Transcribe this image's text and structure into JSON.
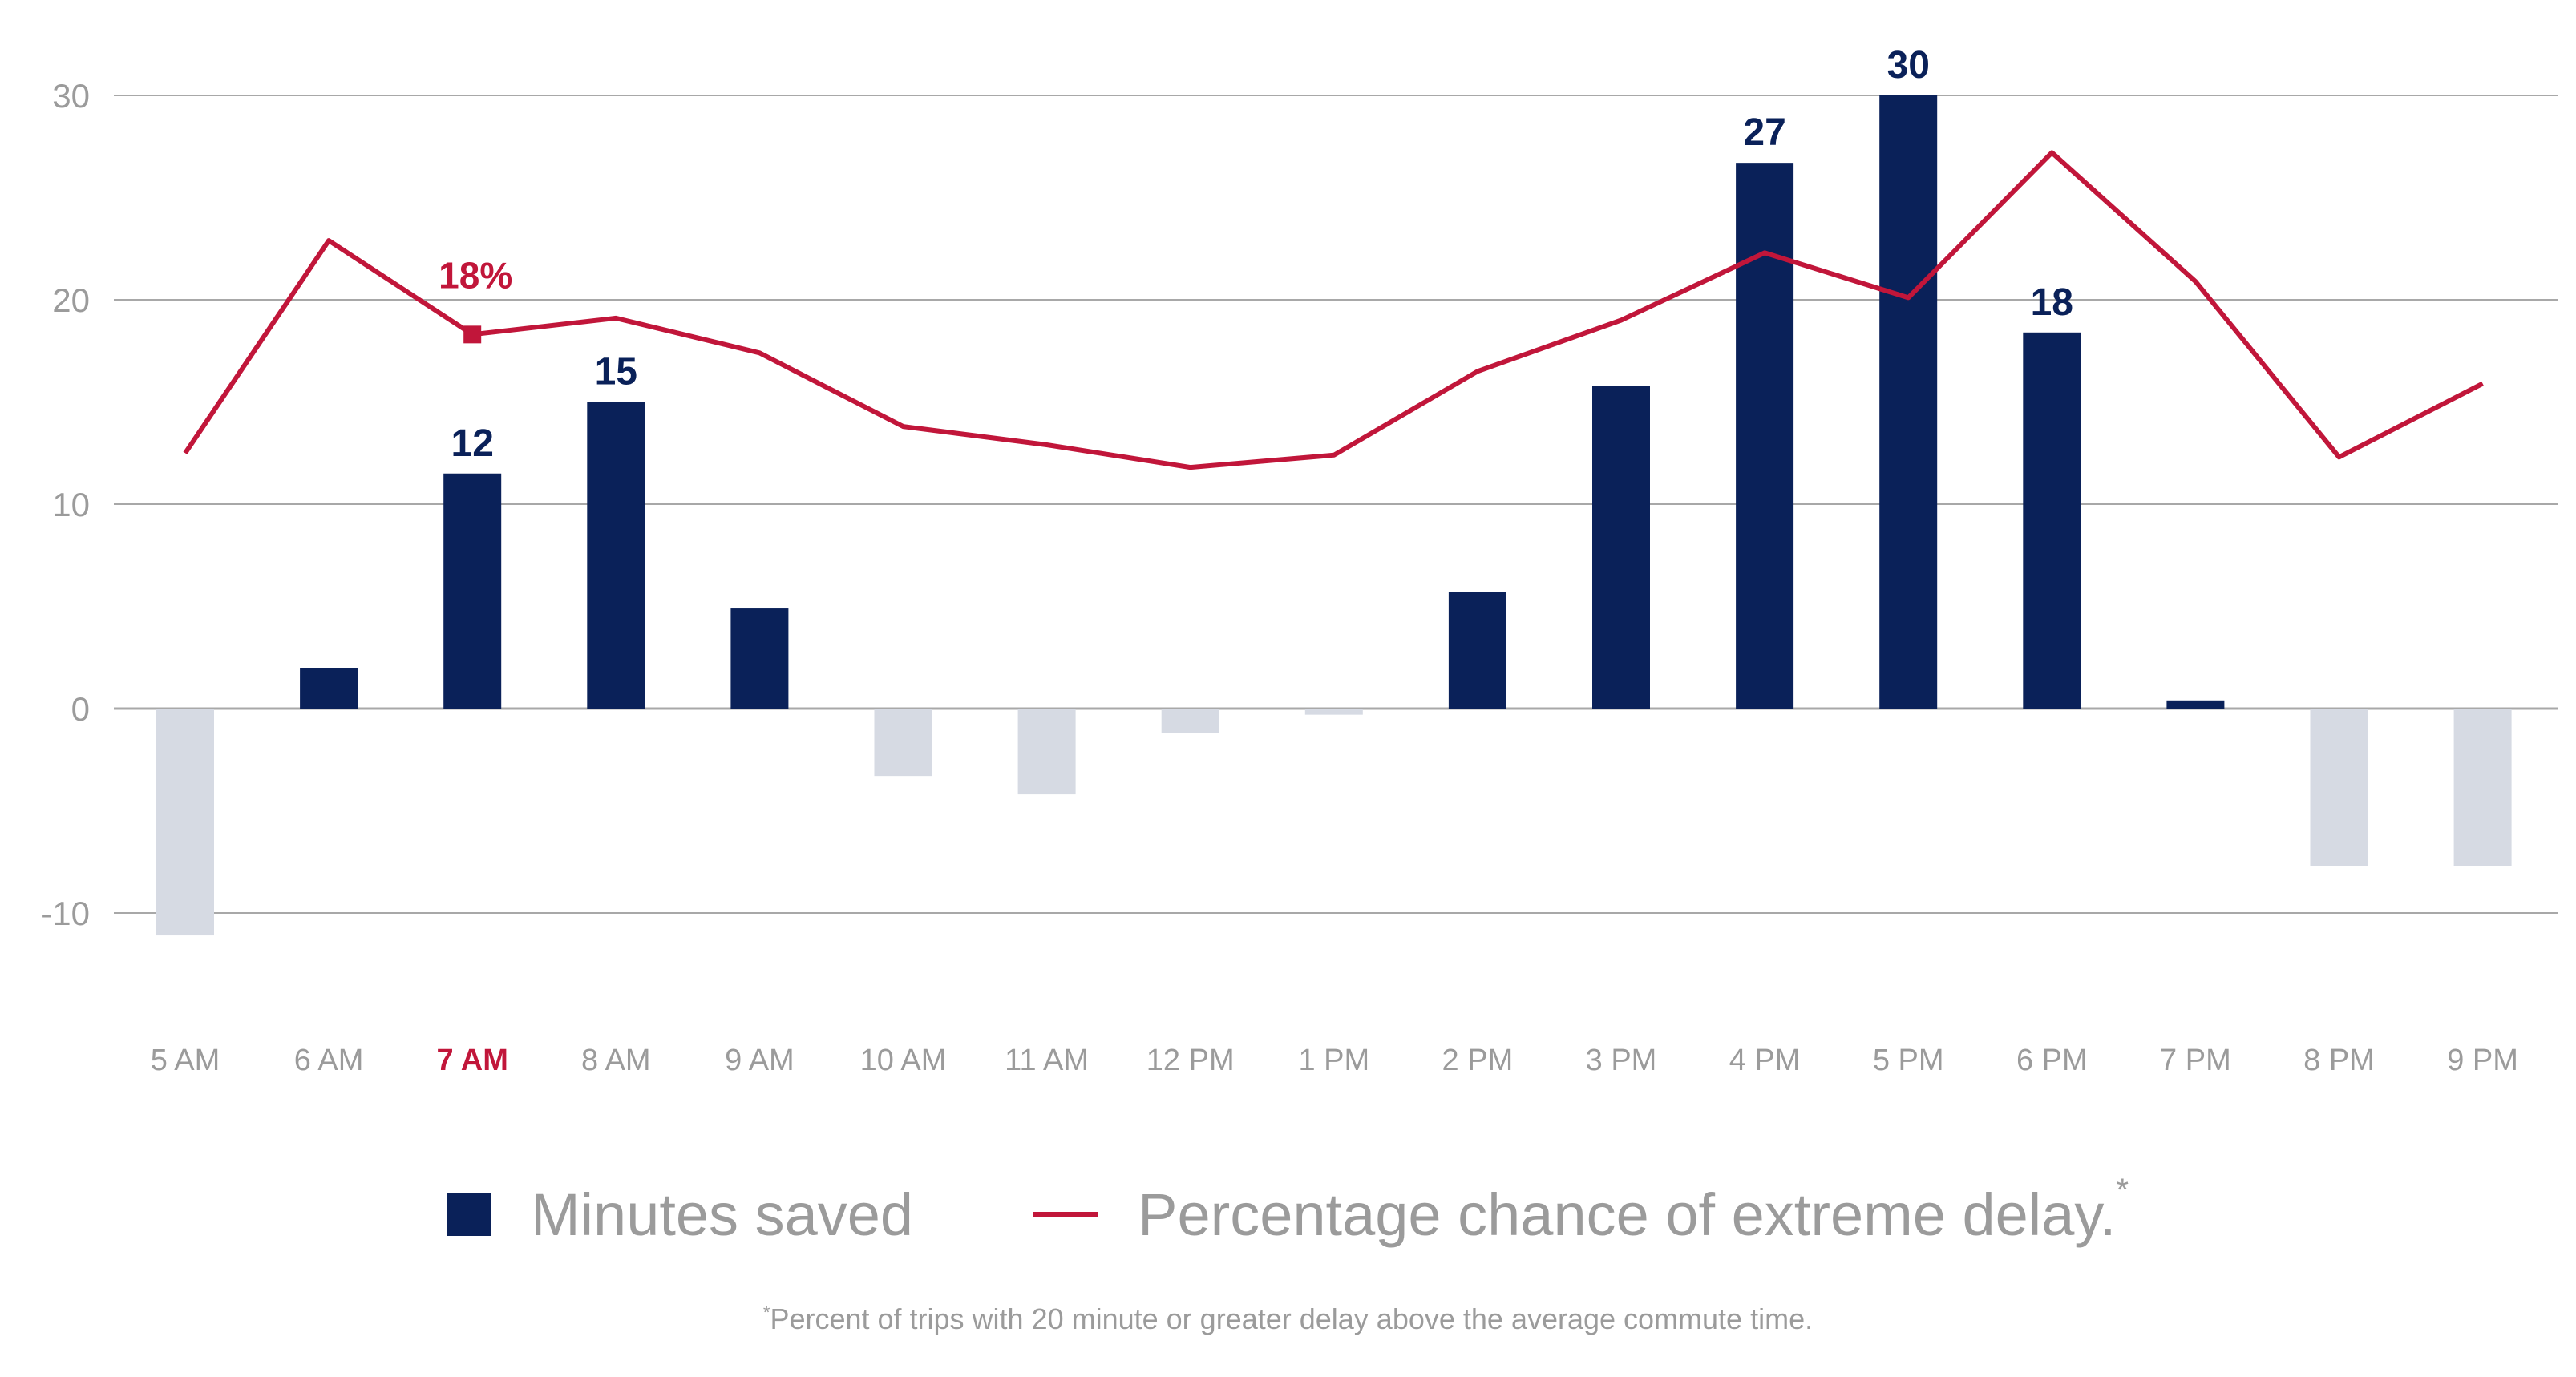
{
  "chart_data": {
    "type": "bar",
    "categories": [
      "5 AM",
      "6 AM",
      "7 AM",
      "8 AM",
      "9 AM",
      "10 AM",
      "11 AM",
      "12 PM",
      "1 PM",
      "2 PM",
      "3 PM",
      "4 PM",
      "5 PM",
      "6 PM",
      "7 PM",
      "8 PM",
      "9 PM"
    ],
    "highlight_category": "7 AM",
    "series": [
      {
        "name": "Minutes saved",
        "kind": "bar",
        "values": [
          -11.1,
          2.0,
          11.5,
          15.0,
          4.9,
          -3.3,
          -4.2,
          -1.2,
          -0.3,
          5.7,
          15.8,
          26.7,
          30.0,
          18.4,
          0.4,
          -7.7,
          -7.7
        ],
        "labels": [
          "",
          "",
          "12",
          "15",
          "",
          "",
          "",
          "",
          "",
          "",
          "",
          "27",
          "30",
          "18",
          "",
          "",
          ""
        ]
      },
      {
        "name": "Percentage chance of extreme delay.",
        "kind": "line",
        "values": [
          12.5,
          22.9,
          18.3,
          19.1,
          17.4,
          13.8,
          12.9,
          11.8,
          12.4,
          16.5,
          19.0,
          22.3,
          20.1,
          27.2,
          20.9,
          12.3,
          15.9
        ],
        "labels": [
          "",
          "",
          "18%",
          "",
          "",
          "",
          "",
          "",
          "",
          "",
          "",
          "",
          "",
          "",
          "",
          "",
          ""
        ]
      }
    ],
    "yticks": [
      "30",
      "20",
      "10",
      "0",
      "-10"
    ],
    "ylim": [
      -13,
      31
    ],
    "legend": {
      "bar_label": "Minutes saved",
      "line_label": "Percentage chance of extreme delay.",
      "line_marker": "*"
    },
    "footnote": {
      "marker": "*",
      "text": "Percent of trips with 20 minute or greater delay above the average commute time."
    },
    "colors": {
      "positive_bar": "#0a2159",
      "negative_bar": "#d6dae3",
      "line": "#c1163a",
      "grid": "#a8a8a8",
      "tick_text": "#9b9b9b"
    }
  }
}
